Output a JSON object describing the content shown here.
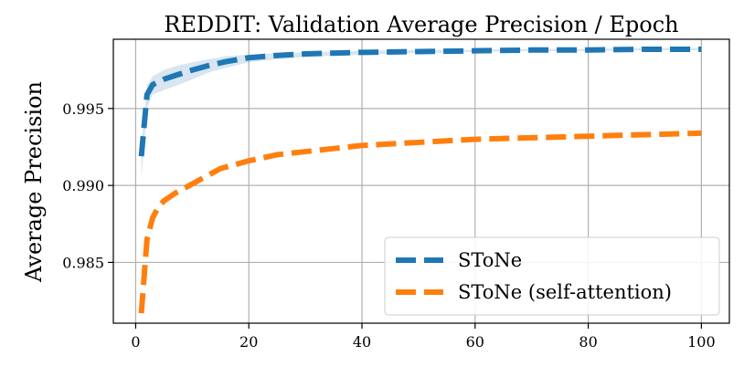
{
  "chart_data": {
    "type": "line",
    "title": "REDDIT: Validation Average Precision / Epoch",
    "xlabel": "",
    "ylabel": "Average Precision",
    "xlim": [
      -3.95,
      104.95
    ],
    "ylim": [
      0.98105,
      0.9995
    ],
    "xticks": [
      0,
      20,
      40,
      60,
      80,
      100
    ],
    "xtick_labels": [
      "0",
      "20",
      "40",
      "60",
      "80",
      "100"
    ],
    "yticks": [
      0.985,
      0.99,
      0.995
    ],
    "ytick_labels": [
      "0.985",
      "0.990",
      "0.995"
    ],
    "grid": true,
    "legend_position": "lower-right",
    "series": [
      {
        "name": "SToNe",
        "color": "#1f77b4",
        "line_style": "dashed",
        "x": [
          1,
          2,
          3,
          5,
          7,
          10,
          13,
          16,
          20,
          25,
          30,
          40,
          50,
          60,
          70,
          80,
          90,
          100
        ],
        "values": [
          0.9919,
          0.9959,
          0.99655,
          0.9969,
          0.99715,
          0.9975,
          0.9978,
          0.99805,
          0.9983,
          0.99845,
          0.99855,
          0.99865,
          0.9987,
          0.99875,
          0.9988,
          0.9988,
          0.99885,
          0.99885
        ],
        "band_upper": [
          0.9925,
          0.9965,
          0.9971,
          0.9975,
          0.99775,
          0.998,
          0.9982,
          0.9984,
          0.9985,
          0.9986,
          0.99865,
          0.99875,
          0.9988,
          0.99882,
          0.99887,
          0.99887,
          0.99892,
          0.99892
        ],
        "band_lower": [
          0.9905,
          0.995,
          0.9959,
          0.9962,
          0.99645,
          0.9969,
          0.99735,
          0.99765,
          0.998,
          0.9982,
          0.99835,
          0.9985,
          0.9986,
          0.99868,
          0.99873,
          0.99873,
          0.99878,
          0.99878
        ]
      },
      {
        "name": "SToNe (self-attention)",
        "color": "#ff7f0e",
        "line_style": "dashed",
        "x": [
          1,
          2,
          3,
          4,
          5,
          7,
          10,
          15,
          20,
          25,
          30,
          35,
          40,
          50,
          60,
          70,
          80,
          90,
          100
        ],
        "values": [
          0.9817,
          0.9865,
          0.9879,
          0.9886,
          0.989,
          0.9895,
          0.9901,
          0.9911,
          0.9916,
          0.992,
          0.9922,
          0.9924,
          0.9926,
          0.9928,
          0.993,
          0.9931,
          0.9932,
          0.9933,
          0.9934
        ]
      }
    ]
  }
}
